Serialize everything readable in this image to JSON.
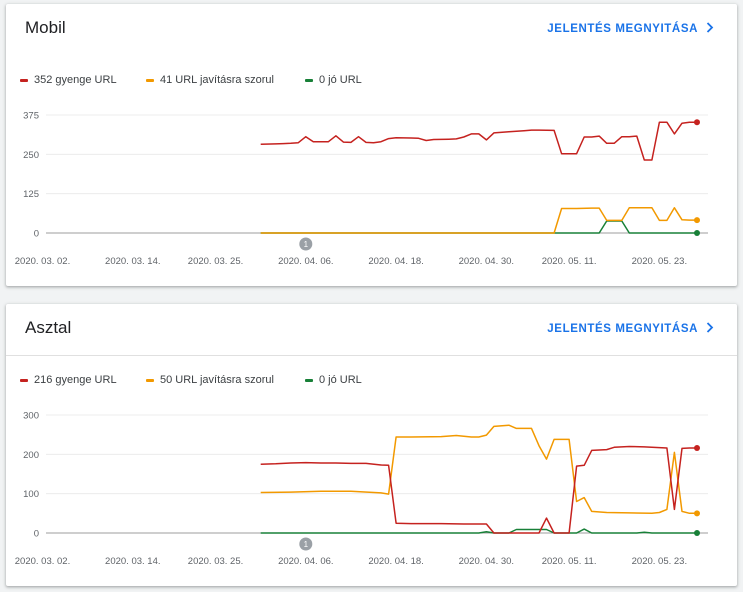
{
  "colors": {
    "poor": "#c5221f",
    "needs_improvement": "#f29900",
    "good": "#188038",
    "link": "#1a73e8",
    "annotation": "#9aa0a6"
  },
  "icons": {
    "report_link": "chevron-right-icon",
    "annotation": "annotation-marker-icon"
  },
  "mobile": {
    "title": "Mobil",
    "link_label": "JELENTÉS MEGNYITÁSA",
    "legend": [
      "352 gyenge URL",
      "41 URL javításra szorul",
      "0 jó URL"
    ],
    "annotation_label": "1"
  },
  "desktop": {
    "title": "Asztal",
    "link_label": "JELENTÉS MEGNYITÁSA",
    "legend": [
      "216 gyenge URL",
      "50 URL javításra szorul",
      "0 jó URL"
    ],
    "annotation_label": "1"
  },
  "chart_data": [
    {
      "type": "line",
      "ylim": [
        0,
        375
      ],
      "yticks": [
        "0",
        "125",
        "250",
        "375"
      ],
      "xticks": [
        "2020. 03. 02.",
        "2020. 03. 14.",
        "2020. 03. 25.",
        "2020. 04. 06.",
        "2020. 04. 18.",
        "2020. 04. 30.",
        "2020. 05. 11.",
        "2020. 05. 23."
      ],
      "grid": true,
      "series": [
        {
          "name": "352 gyenge URL",
          "color": "#c5221f",
          "points": [
            [
              "2020. 03. 31.",
              282
            ],
            [
              "2020. 04. 02.",
              283
            ],
            [
              "2020. 04. 03.",
              284
            ],
            [
              "2020. 04. 04.",
              285
            ],
            [
              "2020. 04. 05.",
              287
            ],
            [
              "2020. 04. 06.",
              306
            ],
            [
              "2020. 04. 07.",
              290
            ],
            [
              "2020. 04. 09.",
              290
            ],
            [
              "2020. 04. 10.",
              309
            ],
            [
              "2020. 04. 11.",
              289
            ],
            [
              "2020. 04. 12.",
              288
            ],
            [
              "2020. 04. 13.",
              306
            ],
            [
              "2020. 04. 14.",
              288
            ],
            [
              "2020. 04. 15.",
              287
            ],
            [
              "2020. 04. 16.",
              290
            ],
            [
              "2020. 04. 17.",
              300
            ],
            [
              "2020. 04. 18.",
              303
            ],
            [
              "2020. 04. 20.",
              302
            ],
            [
              "2020. 04. 21.",
              301
            ],
            [
              "2020. 04. 22.",
              294
            ],
            [
              "2020. 04. 23.",
              297
            ],
            [
              "2020. 04. 25.",
              298
            ],
            [
              "2020. 04. 26.",
              299
            ],
            [
              "2020. 04. 27.",
              305
            ],
            [
              "2020. 04. 28.",
              315
            ],
            [
              "2020. 04. 29.",
              315
            ],
            [
              "2020. 04. 30.",
              296
            ],
            [
              "2020. 05. 01.",
              318
            ],
            [
              "2020. 05. 03.",
              322
            ],
            [
              "2020. 05. 05.",
              325
            ],
            [
              "2020. 05. 06.",
              327
            ],
            [
              "2020. 05. 07.",
              327
            ],
            [
              "2020. 05. 09.",
              326
            ],
            [
              "2020. 05. 10.",
              252
            ],
            [
              "2020. 05. 11.",
              252
            ],
            [
              "2020. 05. 12.",
              252
            ],
            [
              "2020. 05. 13.",
              305
            ],
            [
              "2020. 05. 14.",
              305
            ],
            [
              "2020. 05. 15.",
              308
            ],
            [
              "2020. 05. 16.",
              285
            ],
            [
              "2020. 05. 17.",
              285
            ],
            [
              "2020. 05. 18.",
              306
            ],
            [
              "2020. 05. 19.",
              306
            ],
            [
              "2020. 05. 20.",
              308
            ],
            [
              "2020. 05. 21.",
              232
            ],
            [
              "2020. 05. 22.",
              232
            ],
            [
              "2020. 05. 23.",
              352
            ],
            [
              "2020. 05. 24.",
              352
            ],
            [
              "2020. 05. 25.",
              315
            ],
            [
              "2020. 05. 26.",
              349
            ],
            [
              "2020. 05. 27.",
              352
            ],
            [
              "2020. 05. 28.",
              352
            ]
          ]
        },
        {
          "name": "41 URL javításra szorul",
          "color": "#f29900",
          "points": [
            [
              "2020. 03. 31.",
              0
            ],
            [
              "2020. 05. 07.",
              0
            ],
            [
              "2020. 05. 09.",
              0
            ],
            [
              "2020. 05. 10.",
              78
            ],
            [
              "2020. 05. 12.",
              78
            ],
            [
              "2020. 05. 14.",
              79
            ],
            [
              "2020. 05. 15.",
              79
            ],
            [
              "2020. 05. 16.",
              40
            ],
            [
              "2020. 05. 18.",
              40
            ],
            [
              "2020. 05. 19.",
              80
            ],
            [
              "2020. 05. 21.",
              80
            ],
            [
              "2020. 05. 22.",
              80
            ],
            [
              "2020. 05. 23.",
              40
            ],
            [
              "2020. 05. 24.",
              40
            ],
            [
              "2020. 05. 25.",
              80
            ],
            [
              "2020. 05. 26.",
              42
            ],
            [
              "2020. 05. 27.",
              41
            ],
            [
              "2020. 05. 28.",
              41
            ]
          ]
        },
        {
          "name": "0 jó URL",
          "color": "#188038",
          "points": [
            [
              "2020. 03. 31.",
              0
            ],
            [
              "2020. 05. 15.",
              0
            ],
            [
              "2020. 05. 16.",
              38
            ],
            [
              "2020. 05. 18.",
              38
            ],
            [
              "2020. 05. 19.",
              0
            ],
            [
              "2020. 05. 28.",
              0
            ]
          ]
        }
      ],
      "annotations": [
        {
          "x": "2020. 04. 06.",
          "label": "1"
        }
      ]
    },
    {
      "type": "line",
      "ylim": [
        0,
        300
      ],
      "yticks": [
        "0",
        "100",
        "200",
        "300"
      ],
      "xticks": [
        "2020. 03. 02.",
        "2020. 03. 14.",
        "2020. 03. 25.",
        "2020. 04. 06.",
        "2020. 04. 18.",
        "2020. 04. 30.",
        "2020. 05. 11.",
        "2020. 05. 23."
      ],
      "grid": true,
      "series": [
        {
          "name": "216 gyenge URL",
          "color": "#c5221f",
          "points": [
            [
              "2020. 03. 31.",
              175
            ],
            [
              "2020. 04. 02.",
              176
            ],
            [
              "2020. 04. 04.",
              178
            ],
            [
              "2020. 04. 06.",
              179
            ],
            [
              "2020. 04. 08.",
              178
            ],
            [
              "2020. 04. 10.",
              178
            ],
            [
              "2020. 04. 12.",
              177
            ],
            [
              "2020. 04. 14.",
              177
            ],
            [
              "2020. 04. 16.",
              173
            ],
            [
              "2020. 04. 17.",
              172
            ],
            [
              "2020. 04. 18.",
              25
            ],
            [
              "2020. 04. 20.",
              24
            ],
            [
              "2020. 04. 22.",
              24
            ],
            [
              "2020. 04. 24.",
              24
            ],
            [
              "2020. 04. 27.",
              23
            ],
            [
              "2020. 04. 30.",
              23
            ],
            [
              "2020. 05. 01.",
              0
            ],
            [
              "2020. 05. 07.",
              0
            ],
            [
              "2020. 05. 08.",
              38
            ],
            [
              "2020. 05. 09.",
              0
            ],
            [
              "2020. 05. 11.",
              0
            ],
            [
              "2020. 05. 12.",
              170
            ],
            [
              "2020. 05. 13.",
              172
            ],
            [
              "2020. 05. 14.",
              210
            ],
            [
              "2020. 05. 16.",
              212
            ],
            [
              "2020. 05. 17.",
              218
            ],
            [
              "2020. 05. 19.",
              220
            ],
            [
              "2020. 05. 21.",
              219
            ],
            [
              "2020. 05. 24.",
              216
            ],
            [
              "2020. 05. 25.",
              60
            ],
            [
              "2020. 05. 26.",
              215
            ],
            [
              "2020. 05. 27.",
              216
            ],
            [
              "2020. 05. 28.",
              216
            ]
          ]
        },
        {
          "name": "50 URL javításra szorul",
          "color": "#f29900",
          "points": [
            [
              "2020. 03. 31.",
              103
            ],
            [
              "2020. 04. 04.",
              104
            ],
            [
              "2020. 04. 08.",
              106
            ],
            [
              "2020. 04. 12.",
              106
            ],
            [
              "2020. 04. 16.",
              102
            ],
            [
              "2020. 04. 17.",
              99
            ],
            [
              "2020. 04. 18.",
              244
            ],
            [
              "2020. 04. 20.",
              244
            ],
            [
              "2020. 04. 24.",
              245
            ],
            [
              "2020. 04. 26.",
              248
            ],
            [
              "2020. 04. 28.",
              244
            ],
            [
              "2020. 04. 29.",
              244
            ],
            [
              "2020. 04. 30.",
              249
            ],
            [
              "2020. 05. 01.",
              271
            ],
            [
              "2020. 05. 03.",
              274
            ],
            [
              "2020. 05. 04.",
              266
            ],
            [
              "2020. 05. 06.",
              266
            ],
            [
              "2020. 05. 07.",
              222
            ],
            [
              "2020. 05. 08.",
              188
            ],
            [
              "2020. 05. 09.",
              238
            ],
            [
              "2020. 05. 11.",
              238
            ],
            [
              "2020. 05. 12.",
              80
            ],
            [
              "2020. 05. 13.",
              90
            ],
            [
              "2020. 05. 14.",
              55
            ],
            [
              "2020. 05. 16.",
              52
            ],
            [
              "2020. 05. 19.",
              51
            ],
            [
              "2020. 05. 22.",
              50
            ],
            [
              "2020. 05. 23.",
              52
            ],
            [
              "2020. 05. 24.",
              60
            ],
            [
              "2020. 05. 25.",
              205
            ],
            [
              "2020. 05. 26.",
              55
            ],
            [
              "2020. 05. 27.",
              50
            ],
            [
              "2020. 05. 28.",
              50
            ]
          ]
        },
        {
          "name": "0 jó URL",
          "color": "#188038",
          "points": [
            [
              "2020. 03. 31.",
              0
            ],
            [
              "2020. 04. 29.",
              0
            ],
            [
              "2020. 04. 30.",
              3
            ],
            [
              "2020. 05. 01.",
              0
            ],
            [
              "2020. 05. 03.",
              0
            ],
            [
              "2020. 05. 04.",
              9
            ],
            [
              "2020. 05. 08.",
              9
            ],
            [
              "2020. 05. 09.",
              0
            ],
            [
              "2020. 05. 12.",
              0
            ],
            [
              "2020. 05. 13.",
              10
            ],
            [
              "2020. 05. 14.",
              0
            ],
            [
              "2020. 05. 20.",
              0
            ],
            [
              "2020. 05. 21.",
              2
            ],
            [
              "2020. 05. 22.",
              0
            ],
            [
              "2020. 05. 28.",
              0
            ]
          ]
        }
      ],
      "annotations": [
        {
          "x": "2020. 04. 06.",
          "label": "1"
        }
      ]
    }
  ]
}
